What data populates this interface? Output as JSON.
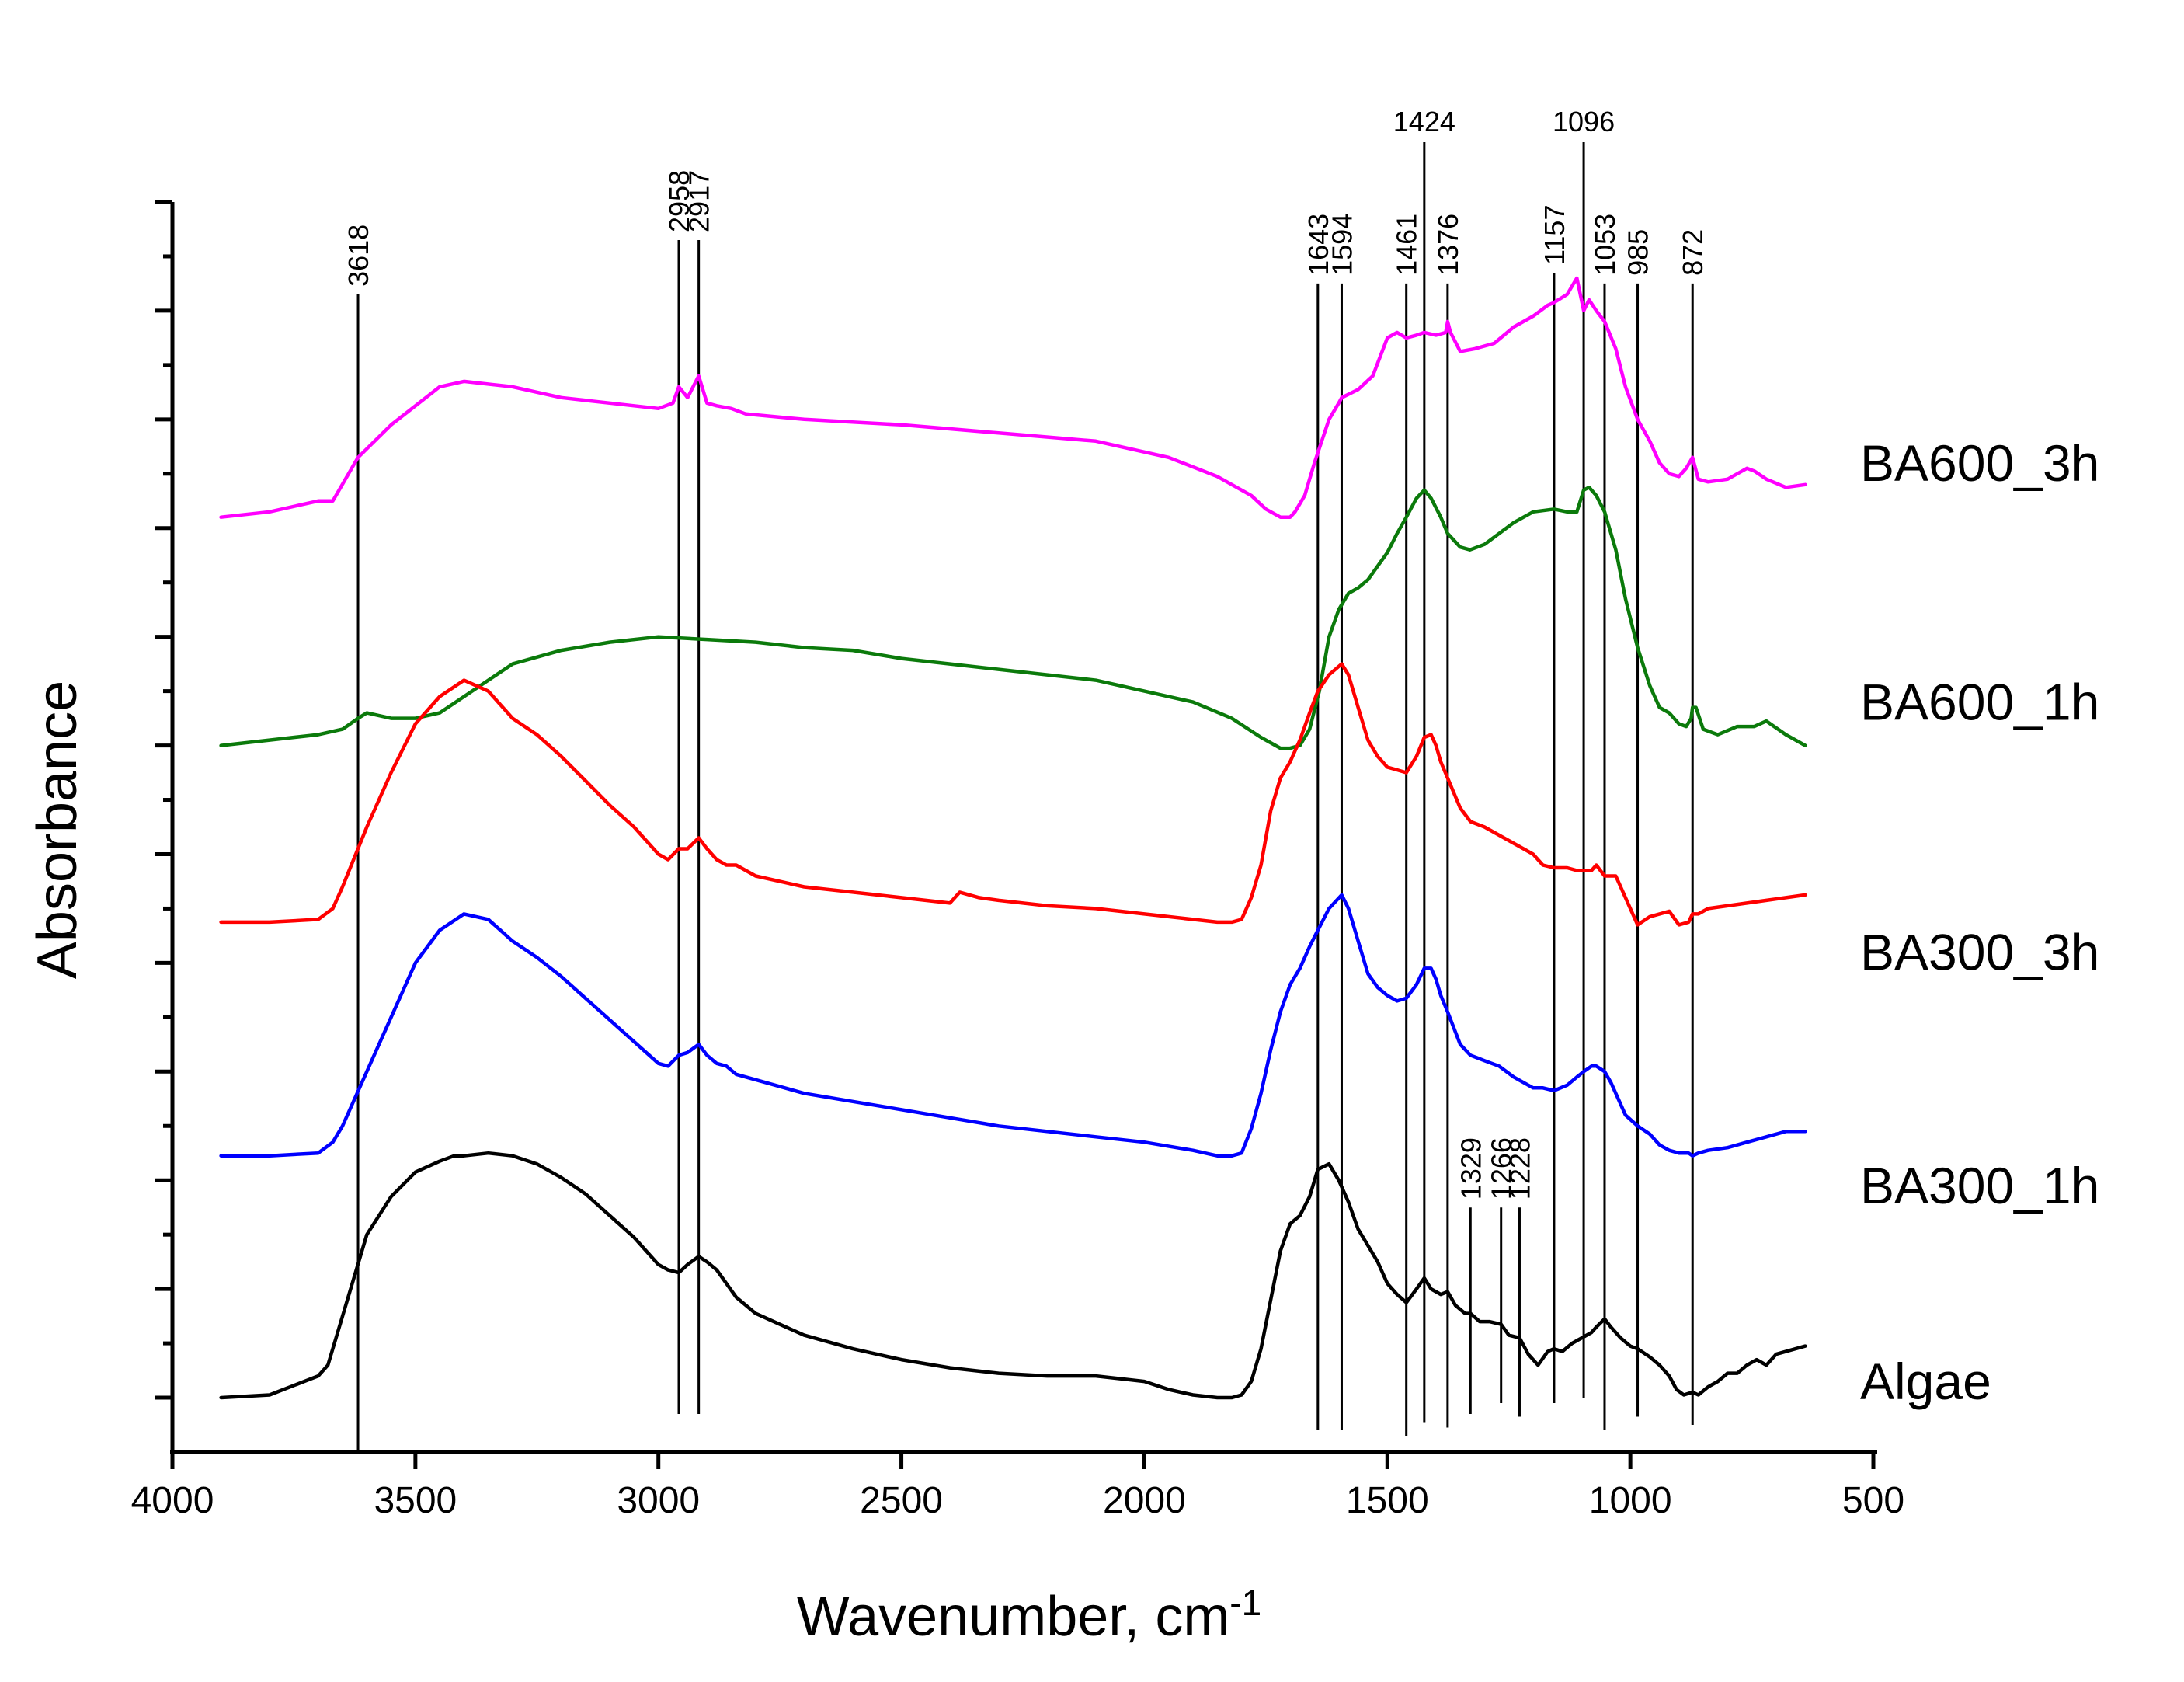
{
  "chart_data": {
    "type": "line",
    "title": "",
    "xlabel": "Wavenumber, cm",
    "xlabel_superscript": "-1",
    "ylabel": "Absorbance",
    "xlim": [
      4000,
      500
    ],
    "x_ticks": [
      4000,
      3500,
      3000,
      2500,
      2000,
      1500,
      1000,
      500
    ],
    "x_tick_labels": [
      "4000",
      "3500",
      "3000",
      "2500",
      "2000",
      "1500",
      "1000",
      "500"
    ],
    "ylim": [
      0,
      23
    ],
    "y_ticks_major": [
      1,
      3,
      5,
      7,
      9,
      11,
      13,
      15,
      17,
      19,
      21,
      23
    ],
    "y_ticks_minor": [
      2,
      4,
      6,
      8,
      10,
      12,
      14,
      16,
      18,
      20,
      22
    ],
    "y_tick_labels_shown": false,
    "grid": false,
    "legend": "inline labels at right end of each trace",
    "peak_markers": [
      {
        "wavenumber": 3618,
        "label": "3618",
        "y_top": 21.3,
        "y_bottom": 0
      },
      {
        "wavenumber": 2958,
        "label": "2958",
        "y_top": 22.3,
        "y_bottom": 0.7
      },
      {
        "wavenumber": 2917,
        "label": "2917",
        "y_top": 22.3,
        "y_bottom": 0.7
      },
      {
        "wavenumber": 1643,
        "label": "1643",
        "y_top": 21.5,
        "y_bottom": 0.4
      },
      {
        "wavenumber": 1594,
        "label": "1594",
        "y_top": 21.5,
        "y_bottom": 0.4
      },
      {
        "wavenumber": 1461,
        "label": "1461",
        "y_top": 21.5,
        "y_bottom": 0.3
      },
      {
        "wavenumber": 1424,
        "label": "1424",
        "y_top": 24.1,
        "y_bottom": 0.55
      },
      {
        "wavenumber": 1376,
        "label": "1376",
        "y_top": 21.5,
        "y_bottom": 0.45
      },
      {
        "wavenumber": 1329,
        "label": "1329",
        "y_top": 4.5,
        "y_bottom": 0.7
      },
      {
        "wavenumber": 1266,
        "label": "1266",
        "y_top": 4.5,
        "y_bottom": 0.9
      },
      {
        "wavenumber": 1228,
        "label": "1228",
        "y_top": 4.5,
        "y_bottom": 0.65
      },
      {
        "wavenumber": 1157,
        "label": "1157",
        "y_top": 21.7,
        "y_bottom": 0.9
      },
      {
        "wavenumber": 1096,
        "label": "1096",
        "y_top": 24.1,
        "y_bottom": 1.0
      },
      {
        "wavenumber": 1053,
        "label": "1053",
        "y_top": 21.5,
        "y_bottom": 0.4
      },
      {
        "wavenumber": 985,
        "label": "985",
        "y_top": 21.5,
        "y_bottom": 0.65
      },
      {
        "wavenumber": 872,
        "label": "872",
        "y_top": 21.5,
        "y_bottom": 0.5
      }
    ],
    "series": [
      {
        "name": "BA600_3h",
        "color": "#ff00ff",
        "label_y": 18.2,
        "x": [
          3900,
          3800,
          3700,
          3670,
          3618,
          3550,
          3450,
          3400,
          3300,
          3200,
          3100,
          3000,
          2970,
          2958,
          2940,
          2917,
          2900,
          2880,
          2850,
          2820,
          2700,
          2500,
          2300,
          2100,
          1950,
          1850,
          1780,
          1750,
          1720,
          1700,
          1690,
          1670,
          1650,
          1620,
          1600,
          1594,
          1560,
          1530,
          1500,
          1480,
          1461,
          1440,
          1424,
          1400,
          1380,
          1376,
          1370,
          1350,
          1320,
          1280,
          1240,
          1200,
          1170,
          1157,
          1130,
          1110,
          1096,
          1085,
          1070,
          1053,
          1030,
          1010,
          985,
          960,
          940,
          920,
          900,
          885,
          872,
          860,
          840,
          800,
          760,
          745,
          720,
          680,
          640
        ],
        "y": [
          17.2,
          17.3,
          17.5,
          17.5,
          18.3,
          18.9,
          19.6,
          19.7,
          19.6,
          19.4,
          19.3,
          19.2,
          19.3,
          19.6,
          19.4,
          19.8,
          19.3,
          19.25,
          19.2,
          19.1,
          19.0,
          18.9,
          18.75,
          18.6,
          18.3,
          17.95,
          17.6,
          17.35,
          17.2,
          17.2,
          17.3,
          17.6,
          18.2,
          19.0,
          19.3,
          19.4,
          19.55,
          19.8,
          20.5,
          20.6,
          20.5,
          20.55,
          20.6,
          20.55,
          20.6,
          20.8,
          20.6,
          20.25,
          20.3,
          20.4,
          20.7,
          20.9,
          21.1,
          21.15,
          21.3,
          21.6,
          21.0,
          21.2,
          21.0,
          20.8,
          20.3,
          19.6,
          19.0,
          18.6,
          18.2,
          18.0,
          17.95,
          18.1,
          18.3,
          17.9,
          17.85,
          17.9,
          18.1,
          18.05,
          17.9,
          17.75,
          17.8
        ]
      },
      {
        "name": "BA600_1h",
        "color": "#0b7a0b",
        "label_y": 13.8,
        "x": [
          3900,
          3800,
          3700,
          3650,
          3618,
          3600,
          3550,
          3500,
          3450,
          3400,
          3350,
          3300,
          3200,
          3100,
          3000,
          2900,
          2800,
          2700,
          2600,
          2500,
          2400,
          2300,
          2200,
          2100,
          2000,
          1900,
          1820,
          1760,
          1720,
          1700,
          1680,
          1660,
          1640,
          1620,
          1600,
          1580,
          1560,
          1540,
          1520,
          1500,
          1480,
          1461,
          1440,
          1424,
          1410,
          1390,
          1376,
          1350,
          1330,
          1300,
          1270,
          1240,
          1200,
          1157,
          1130,
          1110,
          1096,
          1085,
          1070,
          1053,
          1030,
          1010,
          985,
          960,
          940,
          920,
          900,
          885,
          875,
          872,
          865,
          850,
          820,
          780,
          745,
          720,
          680,
          640
        ],
        "y": [
          13.0,
          13.1,
          13.2,
          13.3,
          13.5,
          13.6,
          13.5,
          13.5,
          13.6,
          13.9,
          14.2,
          14.5,
          14.75,
          14.9,
          15.0,
          14.95,
          14.9,
          14.8,
          14.75,
          14.6,
          14.5,
          14.4,
          14.3,
          14.2,
          14.0,
          13.8,
          13.5,
          13.15,
          12.95,
          12.95,
          13.0,
          13.3,
          14.0,
          15.0,
          15.5,
          15.8,
          15.9,
          16.05,
          16.3,
          16.55,
          16.9,
          17.2,
          17.55,
          17.7,
          17.55,
          17.2,
          16.9,
          16.65,
          16.6,
          16.7,
          16.9,
          17.1,
          17.3,
          17.35,
          17.3,
          17.3,
          17.7,
          17.75,
          17.6,
          17.3,
          16.6,
          15.7,
          14.8,
          14.1,
          13.7,
          13.6,
          13.4,
          13.35,
          13.5,
          13.7,
          13.7,
          13.3,
          13.2,
          13.35,
          13.35,
          13.45,
          13.2,
          13.0
        ]
      },
      {
        "name": "BA300_3h",
        "color": "#ff0000",
        "label_y": 9.2,
        "x": [
          3900,
          3800,
          3700,
          3670,
          3650,
          3600,
          3550,
          3500,
          3450,
          3400,
          3350,
          3300,
          3250,
          3200,
          3150,
          3100,
          3050,
          3000,
          2980,
          2958,
          2940,
          2917,
          2900,
          2880,
          2860,
          2840,
          2800,
          2700,
          2600,
          2500,
          2400,
          2380,
          2360,
          2340,
          2300,
          2200,
          2100,
          2000,
          1900,
          1850,
          1820,
          1800,
          1780,
          1760,
          1740,
          1720,
          1700,
          1680,
          1660,
          1643,
          1620,
          1594,
          1580,
          1560,
          1540,
          1520,
          1500,
          1480,
          1461,
          1440,
          1424,
          1410,
          1400,
          1390,
          1376,
          1350,
          1329,
          1300,
          1270,
          1240,
          1200,
          1180,
          1157,
          1130,
          1110,
          1096,
          1080,
          1070,
          1053,
          1040,
          1030,
          1010,
          985,
          960,
          940,
          920,
          900,
          880,
          872,
          860,
          840,
          800,
          760,
          720,
          680,
          640
        ],
        "y": [
          9.75,
          9.75,
          9.8,
          10.0,
          10.4,
          11.5,
          12.5,
          13.4,
          13.9,
          14.2,
          14.0,
          13.5,
          13.2,
          12.8,
          12.35,
          11.9,
          11.5,
          11.0,
          10.9,
          11.1,
          11.1,
          11.3,
          11.1,
          10.9,
          10.8,
          10.8,
          10.6,
          10.4,
          10.3,
          10.2,
          10.1,
          10.3,
          10.25,
          10.2,
          10.15,
          10.05,
          10.0,
          9.9,
          9.8,
          9.75,
          9.75,
          9.8,
          10.2,
          10.8,
          11.8,
          12.4,
          12.7,
          13.1,
          13.6,
          14.0,
          14.3,
          14.5,
          14.3,
          13.7,
          13.1,
          12.8,
          12.6,
          12.55,
          12.5,
          12.8,
          13.15,
          13.2,
          13.0,
          12.7,
          12.4,
          11.85,
          11.6,
          11.5,
          11.35,
          11.2,
          11.0,
          10.8,
          10.75,
          10.75,
          10.7,
          10.7,
          10.7,
          10.8,
          10.6,
          10.6,
          10.6,
          10.2,
          9.7,
          9.85,
          9.9,
          9.95,
          9.7,
          9.75,
          9.9,
          9.9,
          10.0,
          10.05,
          10.1,
          10.15,
          10.2,
          10.25
        ]
      },
      {
        "name": "BA300_1h",
        "color": "#0000ff",
        "label_y": 4.9,
        "x": [
          3900,
          3800,
          3700,
          3670,
          3650,
          3600,
          3550,
          3500,
          3450,
          3400,
          3350,
          3300,
          3250,
          3200,
          3150,
          3100,
          3050,
          3000,
          2980,
          2958,
          2940,
          2917,
          2900,
          2880,
          2860,
          2840,
          2800,
          2700,
          2600,
          2500,
          2400,
          2300,
          2200,
          2100,
          2000,
          1900,
          1850,
          1820,
          1800,
          1780,
          1760,
          1740,
          1720,
          1700,
          1680,
          1660,
          1643,
          1620,
          1594,
          1580,
          1560,
          1540,
          1520,
          1500,
          1480,
          1461,
          1440,
          1424,
          1410,
          1400,
          1390,
          1376,
          1350,
          1329,
          1300,
          1270,
          1240,
          1200,
          1180,
          1157,
          1130,
          1110,
          1096,
          1080,
          1070,
          1053,
          1040,
          1030,
          1010,
          985,
          960,
          940,
          920,
          900,
          880,
          872,
          860,
          840,
          800,
          760,
          720,
          680,
          640
        ],
        "y": [
          5.45,
          5.45,
          5.5,
          5.7,
          6.0,
          7.0,
          8.0,
          9.0,
          9.6,
          9.9,
          9.8,
          9.4,
          9.1,
          8.75,
          8.35,
          7.95,
          7.55,
          7.15,
          7.1,
          7.3,
          7.35,
          7.5,
          7.3,
          7.15,
          7.1,
          6.95,
          6.85,
          6.6,
          6.45,
          6.3,
          6.15,
          6.0,
          5.9,
          5.8,
          5.7,
          5.55,
          5.45,
          5.45,
          5.5,
          5.95,
          6.6,
          7.4,
          8.1,
          8.6,
          8.9,
          9.3,
          9.6,
          10.0,
          10.25,
          10.0,
          9.4,
          8.8,
          8.55,
          8.4,
          8.3,
          8.35,
          8.6,
          8.9,
          8.9,
          8.7,
          8.4,
          8.1,
          7.5,
          7.3,
          7.2,
          7.1,
          6.9,
          6.7,
          6.7,
          6.65,
          6.75,
          6.9,
          7.0,
          7.1,
          7.1,
          7.0,
          6.8,
          6.6,
          6.2,
          6.0,
          5.85,
          5.65,
          5.55,
          5.5,
          5.5,
          5.45,
          5.5,
          5.55,
          5.6,
          5.7,
          5.8,
          5.9,
          5.9
        ]
      },
      {
        "name": "Algae",
        "color": "#000000",
        "label_y": 1.3,
        "x": [
          3900,
          3800,
          3700,
          3680,
          3650,
          3600,
          3550,
          3500,
          3450,
          3420,
          3400,
          3350,
          3300,
          3250,
          3200,
          3150,
          3100,
          3050,
          3000,
          2980,
          2958,
          2940,
          2917,
          2900,
          2880,
          2860,
          2840,
          2800,
          2700,
          2600,
          2500,
          2400,
          2300,
          2200,
          2100,
          2000,
          1950,
          1900,
          1850,
          1820,
          1800,
          1780,
          1760,
          1740,
          1720,
          1700,
          1680,
          1660,
          1643,
          1620,
          1600,
          1580,
          1560,
          1540,
          1520,
          1500,
          1480,
          1461,
          1440,
          1424,
          1410,
          1390,
          1376,
          1360,
          1340,
          1329,
          1310,
          1290,
          1266,
          1250,
          1228,
          1210,
          1190,
          1170,
          1157,
          1140,
          1120,
          1100,
          1080,
          1070,
          1053,
          1040,
          1020,
          1000,
          985,
          960,
          940,
          920,
          905,
          890,
          872,
          860,
          840,
          820,
          800,
          780,
          760,
          740,
          720,
          700,
          680,
          660,
          640
        ],
        "y": [
          1.0,
          1.05,
          1.4,
          1.6,
          2.5,
          4.0,
          4.7,
          5.15,
          5.35,
          5.45,
          5.45,
          5.5,
          5.45,
          5.3,
          5.05,
          4.75,
          4.35,
          3.95,
          3.45,
          3.35,
          3.3,
          3.45,
          3.6,
          3.5,
          3.35,
          3.1,
          2.85,
          2.55,
          2.15,
          1.9,
          1.7,
          1.55,
          1.45,
          1.4,
          1.4,
          1.3,
          1.15,
          1.05,
          1.0,
          1.0,
          1.05,
          1.3,
          1.9,
          2.8,
          3.7,
          4.2,
          4.35,
          4.7,
          5.2,
          5.3,
          5.0,
          4.6,
          4.1,
          3.8,
          3.5,
          3.1,
          2.9,
          2.75,
          3.0,
          3.2,
          3.0,
          2.9,
          2.95,
          2.7,
          2.55,
          2.55,
          2.4,
          2.4,
          2.35,
          2.15,
          2.1,
          1.8,
          1.6,
          1.85,
          1.9,
          1.85,
          2.0,
          2.1,
          2.2,
          2.3,
          2.45,
          2.3,
          2.1,
          1.95,
          1.9,
          1.75,
          1.6,
          1.4,
          1.15,
          1.05,
          1.1,
          1.05,
          1.2,
          1.3,
          1.45,
          1.45,
          1.6,
          1.7,
          1.6,
          1.8,
          1.85,
          1.9,
          1.95
        ]
      }
    ]
  }
}
